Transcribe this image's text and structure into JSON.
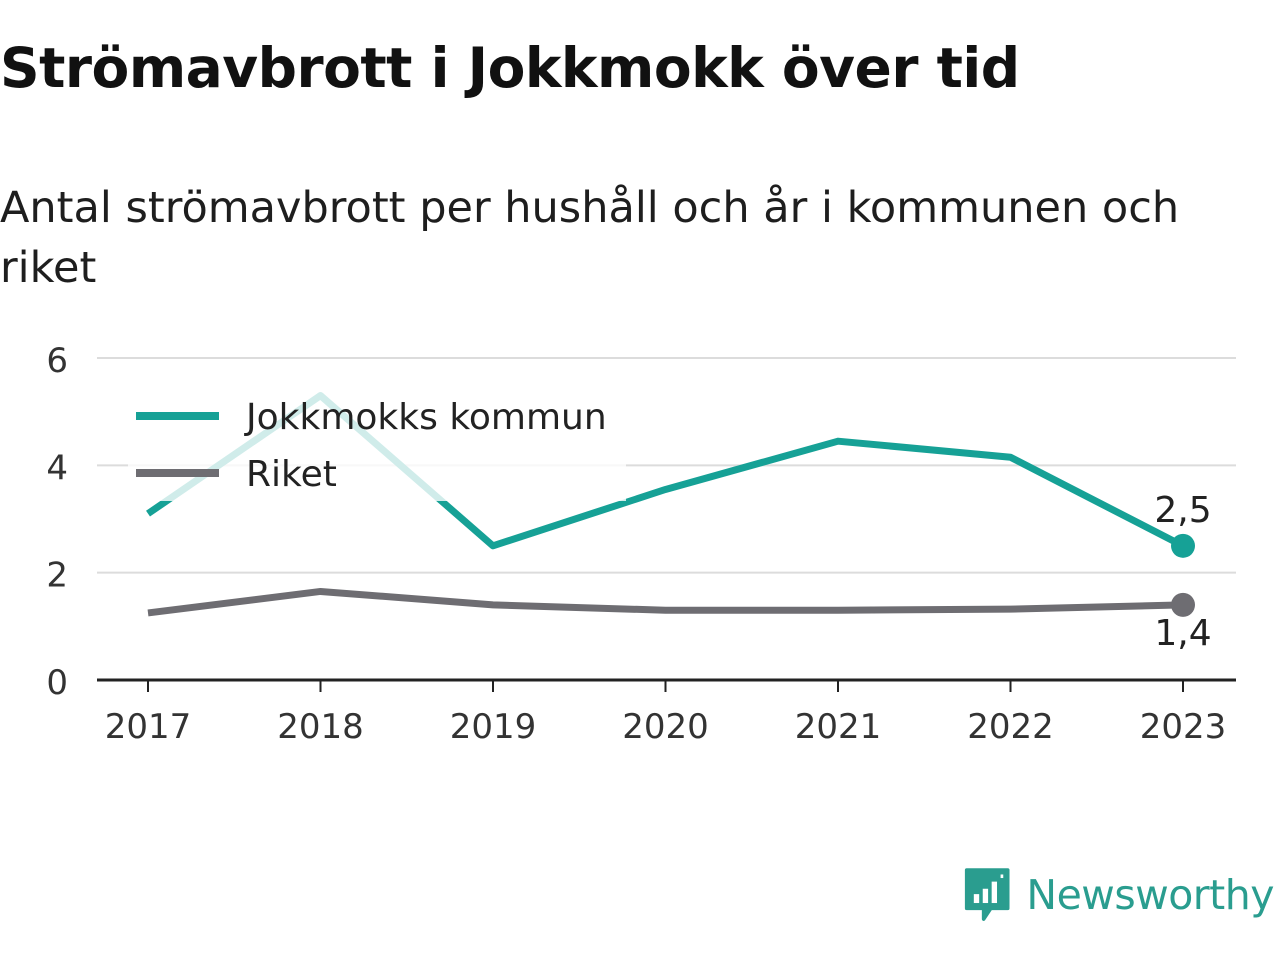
{
  "header": {
    "title": "Strömavbrott i Jokkmokk över tid",
    "subtitle": "Antal strömavbrott per hushåll och år i kommunen och riket"
  },
  "colors": {
    "jokkmokk": "#16a196",
    "riket": "#6e6d72",
    "grid": "#dcdcdc",
    "axis": "#222222",
    "brand": "#2a9d8f"
  },
  "chart_data": {
    "type": "line",
    "x": [
      "2017",
      "2018",
      "2019",
      "2020",
      "2021",
      "2022",
      "2023"
    ],
    "ylim": [
      0,
      6
    ],
    "yticks": [
      "0",
      "2",
      "4",
      "6"
    ],
    "grid": true,
    "legend_position": "top-left",
    "series": [
      {
        "name": "Jokkmokks kommun",
        "values": [
          3.1,
          5.3,
          2.5,
          3.55,
          4.45,
          4.15,
          2.5
        ],
        "end_label": "2,5"
      },
      {
        "name": "Riket",
        "values": [
          1.25,
          1.65,
          1.4,
          1.3,
          1.3,
          1.32,
          1.4
        ],
        "end_label": "1,4"
      }
    ]
  },
  "footer": {
    "brand": "Newsworthy",
    "logo_icon": "newsworthy-chart-bubble-icon"
  }
}
